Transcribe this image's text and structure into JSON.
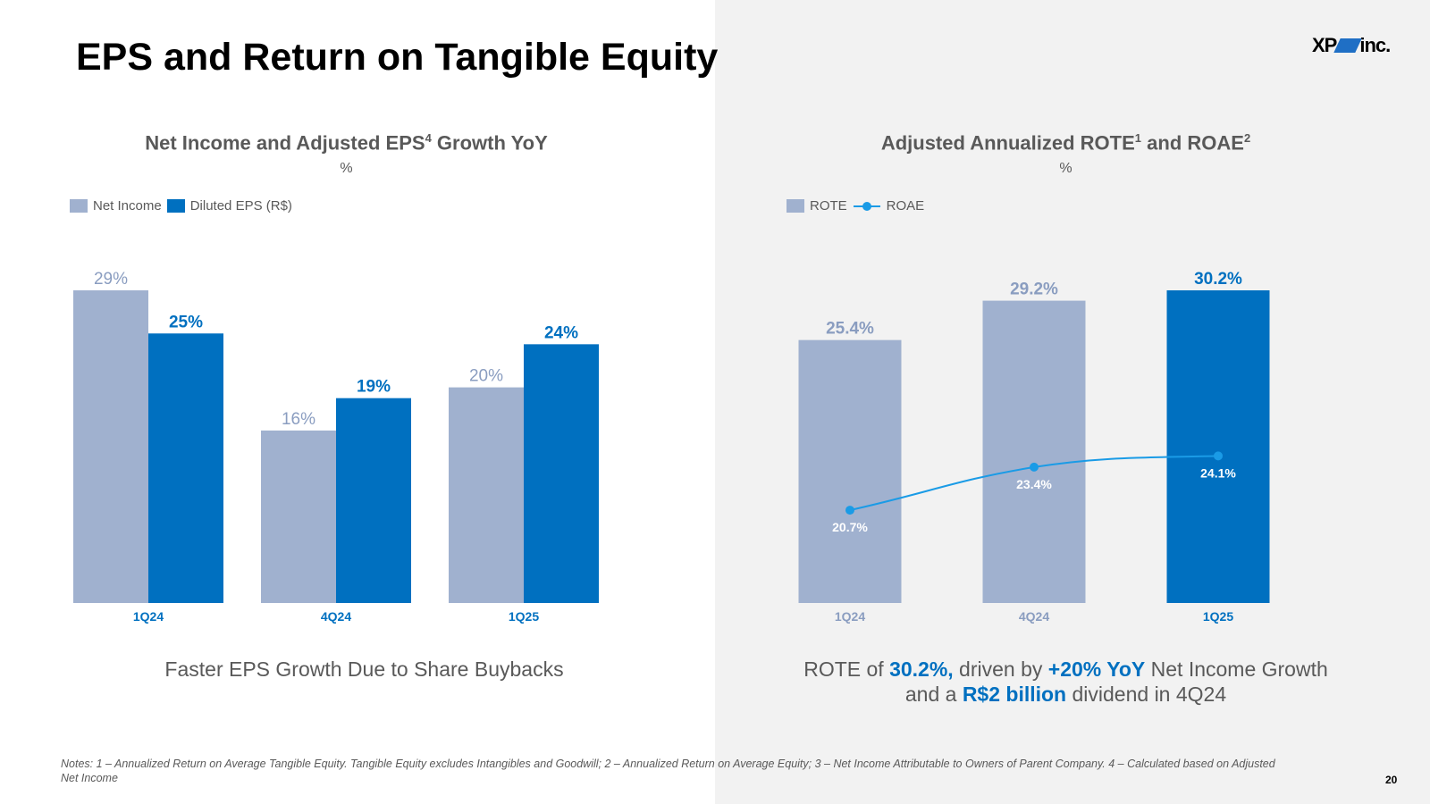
{
  "title": "EPS and Return on Tangible Equity",
  "logo": {
    "left": "XP",
    "right": "inc."
  },
  "colors": {
    "light_bar": "#a0b1cf",
    "dark_bar": "#0070c0",
    "line": "#1a9be6",
    "text_grey": "#595959"
  },
  "left_panel": {
    "title": "Net Income and Adjusted EPS",
    "title_sup": "4",
    "title_suffix": " Growth YoY",
    "unit": "%",
    "legend": [
      "Net Income",
      "Diluted EPS (R$)"
    ],
    "caption": "Faster EPS Growth Due to Share Buybacks"
  },
  "right_panel": {
    "title_a": "Adjusted Annualized ROTE",
    "title_sup1": "1",
    "title_b": " and ROAE",
    "title_sup2": "2",
    "unit": "%",
    "legend": [
      "ROTE",
      "ROAE"
    ],
    "caption": {
      "p1": "ROTE of ",
      "h1": "30.2%,",
      "p2": " driven by ",
      "h2": "+20% YoY",
      "p3": " Net Income Growth",
      "p4": "and a ",
      "h3": "R$2 billion",
      "p5": " dividend in 4Q24"
    }
  },
  "chart_data": [
    {
      "type": "bar",
      "title": "Net Income and Adjusted EPS4 Growth YoY",
      "ylabel": "%",
      "categories": [
        "1Q24",
        "4Q24",
        "1Q25"
      ],
      "series": [
        {
          "name": "Net Income",
          "values": [
            29,
            16,
            20
          ],
          "labels": [
            "29%",
            "16%",
            "20%"
          ]
        },
        {
          "name": "Diluted EPS (R$)",
          "values": [
            25,
            19,
            24
          ],
          "labels": [
            "25%",
            "19%",
            "24%"
          ]
        }
      ],
      "ylim": [
        0,
        29
      ]
    },
    {
      "type": "bar",
      "title": "Adjusted Annualized ROTE1 and ROAE2",
      "ylabel": "%",
      "categories": [
        "1Q24",
        "4Q24",
        "1Q25"
      ],
      "series": [
        {
          "name": "ROTE",
          "values": [
            25.4,
            29.2,
            30.2
          ],
          "labels": [
            "25.4%",
            "29.2%",
            "30.2%"
          ]
        },
        {
          "name": "ROAE",
          "type": "line",
          "values": [
            20.7,
            23.4,
            24.1
          ],
          "labels": [
            "20.7%",
            "23.4%",
            "24.1%"
          ]
        }
      ],
      "ylim": [
        0,
        30.2
      ]
    }
  ],
  "notes": "Notes: 1 – Annualized Return on Average Tangible Equity. Tangible Equity excludes Intangibles and Goodwill; 2 – Annualized Return on Average Equity; 3 – Net Income Attributable to Owners of Parent Company. 4 – Calculated based on Adjusted Net Income",
  "page_number": "20"
}
